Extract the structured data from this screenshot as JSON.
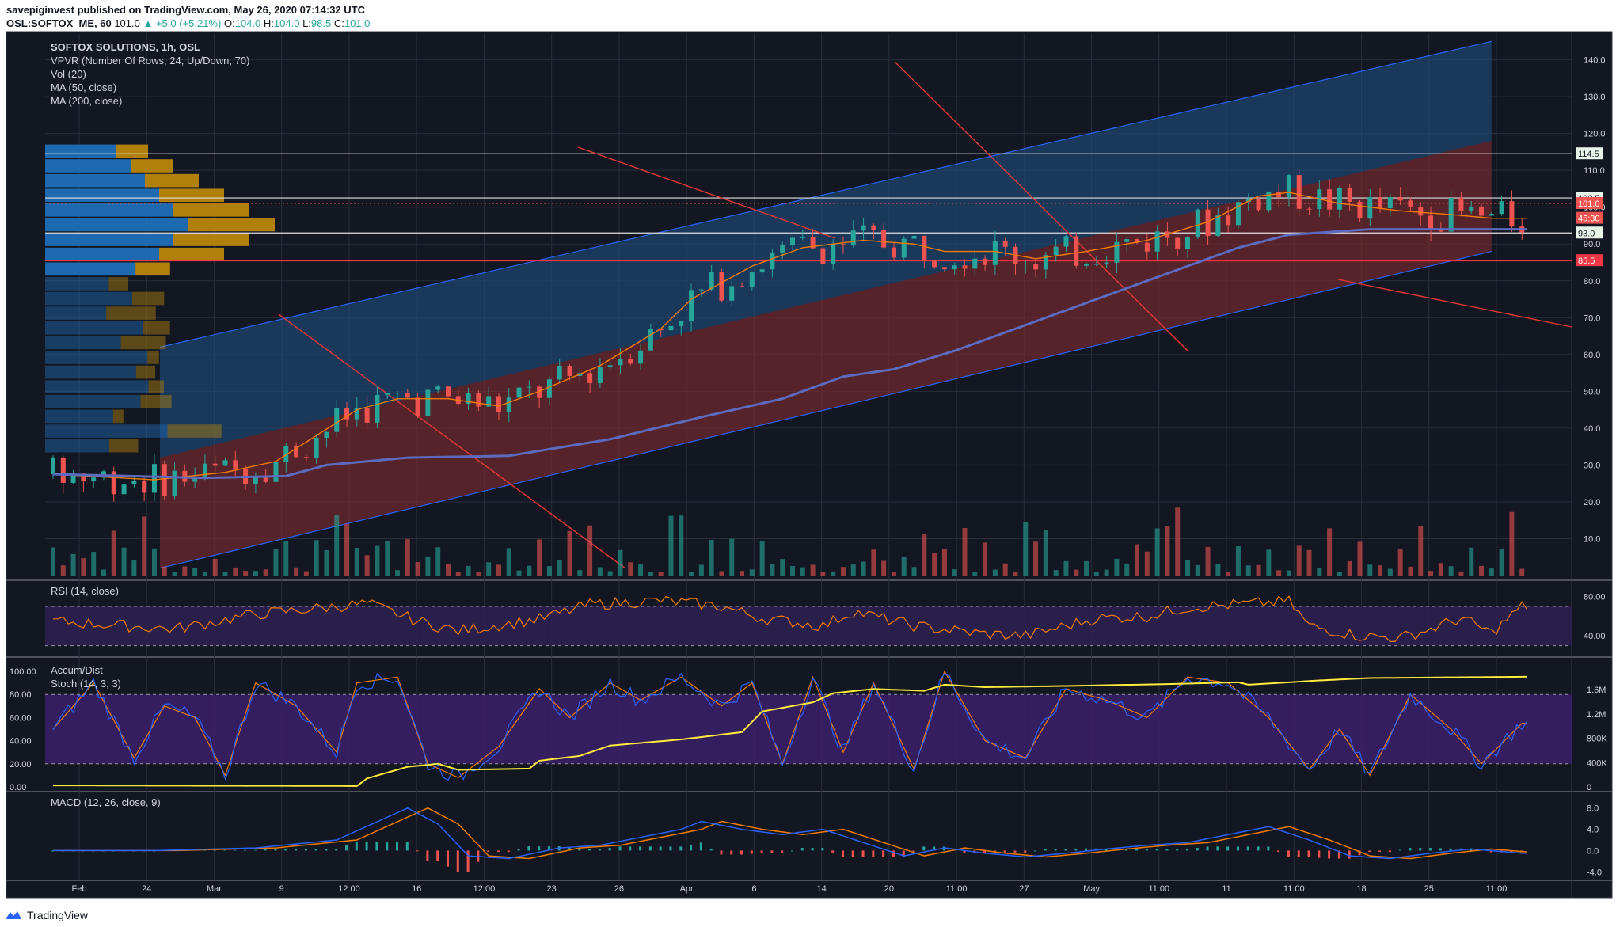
{
  "header": {
    "publisher_line": "savepiginvest published on TradingView.com, May 26, 2020 07:14:32 UTC",
    "symbol": "OSL:SOFTOX_ME, 60",
    "last": "101.0",
    "change": "▲ +5.0 (+5.21%)",
    "o_label": "O:",
    "o": "104.0",
    "h_label": "H:",
    "h": "104.0",
    "l_label": "L:",
    "l": "98.5",
    "c_label": "C:",
    "c": "101.0"
  },
  "legend": {
    "title": "SOFTOX SOLUTIONS, 1h, OSL",
    "vpvr": "VPVR (Number Of Rows, 24, Up/Down, 70)",
    "vol": "Vol (20)",
    "ma50": "MA (50, close)",
    "ma200": "MA (200, close)"
  },
  "panes": {
    "rsi_label": "RSI (14, close)",
    "ad_label": "Accum/Dist",
    "stoch_label": "Stoch (14, 3, 3)",
    "macd_label": "MACD (12, 26, close, 9)"
  },
  "price_axis": [
    "140.0",
    "130.0",
    "120.0",
    "110.0",
    "100.0",
    "90.0",
    "80.0",
    "70.0",
    "60.0",
    "50.0",
    "40.0",
    "30.0",
    "20.0",
    "10.0"
  ],
  "price_badges": [
    {
      "text": "114.5",
      "value": 114.5,
      "bg": "#e8f5e9",
      "fg": "#131722"
    },
    {
      "text": "102.5",
      "value": 102.5,
      "bg": "#e8f5e9",
      "fg": "#131722"
    },
    {
      "text": "101.0",
      "value": 101.0,
      "bg": "#ef5350",
      "fg": "#ffffff"
    },
    {
      "text": "45:30",
      "value": 97.0,
      "bg": "#ef5350",
      "fg": "#ffffff"
    },
    {
      "text": "93.0",
      "value": 93.0,
      "bg": "#e8f5e9",
      "fg": "#131722"
    },
    {
      "text": "85.5",
      "value": 85.5,
      "bg": "#f23645",
      "fg": "#ffffff"
    }
  ],
  "rsi_axis": [
    "80.00",
    "40.00"
  ],
  "stoch_axis": [
    "100.00",
    "80.00",
    "60.00",
    "40.00",
    "20.00",
    "0.00"
  ],
  "ad_axis": [
    "1.6M",
    "1.2M",
    "800K",
    "400K",
    "0"
  ],
  "macd_axis": [
    "8.0",
    "4.0",
    "0.0",
    "-4.0"
  ],
  "time_axis": [
    "Feb",
    "24",
    "Mar",
    "9",
    "12:00",
    "16",
    "12:00",
    "23",
    "26",
    "Apr",
    "6",
    "14",
    "20",
    "11:00",
    "27",
    "May",
    "11:00",
    "11",
    "11:00",
    "18",
    "25",
    "11:00"
  ],
  "colors": {
    "background": "#131722",
    "grid": "#2a2e39",
    "up": "#26a69a",
    "down": "#ef5350",
    "ma50": "#f57c00",
    "ma200": "#5c6bc0",
    "channel_upper": "#1e4a7a",
    "channel_lower": "#7a2a2e",
    "rsi_band": "#2d1f4f",
    "rsi_line": "#f57c00",
    "stoch_band": "#3a1f66",
    "stoch_k": "#2962ff",
    "stoch_d": "#f57c00",
    "ad_line": "#ffeb3b",
    "macd_line": "#2962ff",
    "signal_line": "#f57c00",
    "vpvr_up": "#1e6fb8",
    "vpvr_down": "#b8860b",
    "horizontal_line": "#e0e0e0",
    "support_line": "#f23645"
  },
  "footer": {
    "brand": "TradingView"
  },
  "chart_data": {
    "type": "candlestick",
    "title": "SOFTOX SOLUTIONS, 1h, OSL",
    "ylim": [
      0,
      147
    ],
    "horizontal_levels": [
      114.5,
      102.5,
      93.0,
      85.5
    ],
    "ma50_keypoints": [
      [
        0,
        27.5
      ],
      [
        10,
        26
      ],
      [
        17,
        28
      ],
      [
        22,
        31
      ],
      [
        26,
        38
      ],
      [
        30,
        45
      ],
      [
        34,
        48
      ],
      [
        39,
        48
      ],
      [
        44,
        46
      ],
      [
        48,
        50
      ],
      [
        54,
        57
      ],
      [
        60,
        67
      ],
      [
        63,
        75
      ],
      [
        69,
        84
      ],
      [
        74,
        89
      ],
      [
        80,
        91
      ],
      [
        85,
        90
      ],
      [
        88,
        88
      ],
      [
        93,
        88
      ],
      [
        97,
        86
      ],
      [
        102,
        88
      ],
      [
        108,
        91
      ],
      [
        114,
        96
      ],
      [
        119,
        103
      ],
      [
        122,
        104
      ],
      [
        127,
        101
      ],
      [
        133,
        99
      ],
      [
        138,
        98
      ],
      [
        142,
        97
      ]
    ],
    "ma200_keypoints": [
      [
        0,
        27.5
      ],
      [
        15,
        26.5
      ],
      [
        23,
        27
      ],
      [
        27,
        30
      ],
      [
        35,
        32
      ],
      [
        45,
        32.5
      ],
      [
        55,
        37
      ],
      [
        64,
        43
      ],
      [
        72,
        48
      ],
      [
        78,
        54
      ],
      [
        83,
        56
      ],
      [
        89,
        61
      ],
      [
        96,
        68
      ],
      [
        103,
        75
      ],
      [
        110,
        82
      ],
      [
        117,
        89
      ],
      [
        122,
        92.5
      ],
      [
        130,
        94
      ],
      [
        136,
        94
      ],
      [
        142,
        94
      ]
    ],
    "rsi_keypoints": [
      [
        0,
        55
      ],
      [
        12,
        47
      ],
      [
        20,
        62
      ],
      [
        31,
        73
      ],
      [
        36,
        55
      ],
      [
        40,
        45
      ],
      [
        48,
        57
      ],
      [
        53,
        72
      ],
      [
        60,
        76
      ],
      [
        66,
        70
      ],
      [
        70,
        58
      ],
      [
        76,
        50
      ],
      [
        79,
        65
      ],
      [
        85,
        50
      ],
      [
        92,
        42
      ],
      [
        96,
        40
      ],
      [
        103,
        58
      ],
      [
        108,
        60
      ],
      [
        112,
        69
      ],
      [
        117,
        72
      ],
      [
        122,
        75
      ],
      [
        124,
        50
      ],
      [
        129,
        40
      ],
      [
        133,
        38
      ],
      [
        136,
        47
      ],
      [
        139,
        58
      ],
      [
        142,
        43
      ],
      [
        145,
        70
      ]
    ],
    "ad_keypoints": [
      [
        0,
        25000
      ],
      [
        30,
        15000
      ],
      [
        31,
        140000
      ],
      [
        35,
        330000
      ],
      [
        38,
        380000
      ],
      [
        40,
        280000
      ],
      [
        47,
        300000
      ],
      [
        48,
        430000
      ],
      [
        52,
        510000
      ],
      [
        55,
        680000
      ],
      [
        62,
        780000
      ],
      [
        68,
        900000
      ],
      [
        70,
        1240000
      ],
      [
        71,
        1270000
      ],
      [
        75,
        1390000
      ],
      [
        77,
        1540000
      ],
      [
        81,
        1610000
      ],
      [
        86,
        1580000
      ],
      [
        88,
        1680000
      ],
      [
        92,
        1640000
      ],
      [
        100,
        1660000
      ],
      [
        110,
        1690000
      ],
      [
        117,
        1720000
      ],
      [
        118,
        1680000
      ],
      [
        125,
        1750000
      ],
      [
        130,
        1790000
      ],
      [
        145,
        1810000
      ]
    ],
    "stoch_keypoints": [
      [
        0,
        50
      ],
      [
        4,
        90
      ],
      [
        8,
        25
      ],
      [
        11,
        70
      ],
      [
        14,
        60
      ],
      [
        17,
        10
      ],
      [
        20,
        90
      ],
      [
        24,
        70
      ],
      [
        28,
        30
      ],
      [
        30,
        90
      ],
      [
        34,
        95
      ],
      [
        37,
        20
      ],
      [
        40,
        8
      ],
      [
        44,
        35
      ],
      [
        48,
        85
      ],
      [
        51,
        60
      ],
      [
        55,
        90
      ],
      [
        58,
        75
      ],
      [
        62,
        95
      ],
      [
        66,
        70
      ],
      [
        69,
        90
      ],
      [
        72,
        20
      ],
      [
        75,
        95
      ],
      [
        78,
        30
      ],
      [
        81,
        90
      ],
      [
        85,
        15
      ],
      [
        88,
        100
      ],
      [
        92,
        40
      ],
      [
        96,
        25
      ],
      [
        100,
        85
      ],
      [
        104,
        75
      ],
      [
        108,
        60
      ],
      [
        112,
        95
      ],
      [
        116,
        90
      ],
      [
        120,
        60
      ],
      [
        124,
        15
      ],
      [
        127,
        50
      ],
      [
        130,
        10
      ],
      [
        134,
        80
      ],
      [
        138,
        50
      ],
      [
        141,
        20
      ],
      [
        145,
        55
      ]
    ],
    "macd_keypoints": [
      [
        0,
        0
      ],
      [
        10,
        0
      ],
      [
        20,
        0.5
      ],
      [
        28,
        2
      ],
      [
        35,
        8
      ],
      [
        38,
        5
      ],
      [
        41,
        -1
      ],
      [
        45,
        -1.5
      ],
      [
        50,
        0.5
      ],
      [
        54,
        1
      ],
      [
        58,
        2.5
      ],
      [
        62,
        4
      ],
      [
        64,
        5.5
      ],
      [
        68,
        4
      ],
      [
        72,
        3
      ],
      [
        76,
        4
      ],
      [
        80,
        1.5
      ],
      [
        84,
        -1
      ],
      [
        88,
        0.5
      ],
      [
        92,
        -0.5
      ],
      [
        96,
        -1.2
      ],
      [
        100,
        -0.5
      ],
      [
        104,
        0.3
      ],
      [
        108,
        1
      ],
      [
        112,
        1.5
      ],
      [
        116,
        3
      ],
      [
        120,
        4.5
      ],
      [
        124,
        2
      ],
      [
        128,
        -1
      ],
      [
        132,
        -1.5
      ],
      [
        136,
        -0.5
      ],
      [
        140,
        0.3
      ],
      [
        145,
        -0.5
      ]
    ],
    "vpvr_rows_prices": [
      115,
      111,
      107,
      103,
      99,
      95,
      91,
      87,
      83,
      79,
      75,
      71,
      67,
      63,
      59,
      55,
      51,
      47,
      43,
      39,
      35
    ]
  }
}
